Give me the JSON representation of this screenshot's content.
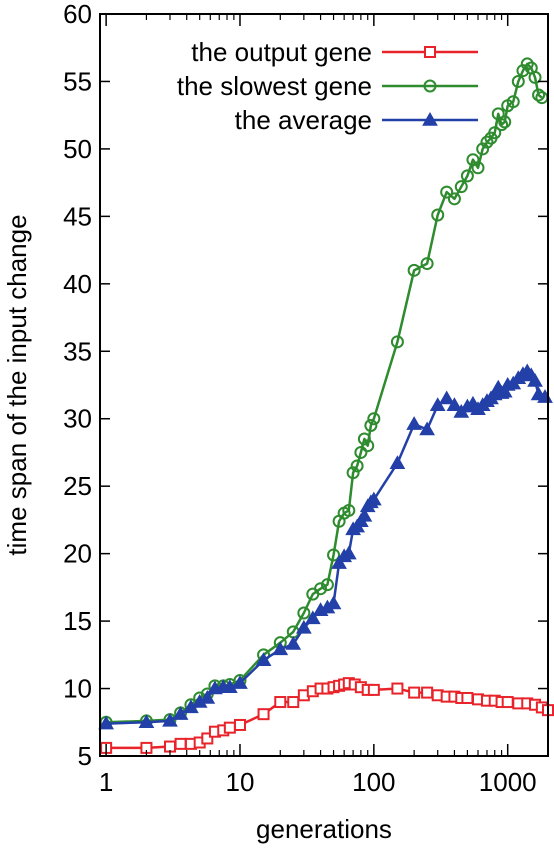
{
  "chart_data": {
    "type": "line",
    "title": "",
    "xlabel": "generations",
    "ylabel": "time span of the input change",
    "xscale": "log",
    "xlim": [
      0.9,
      2000
    ],
    "ylim": [
      5,
      60
    ],
    "grid": false,
    "legend_position": "top-left",
    "x_ticks": [
      {
        "value": 1,
        "label": "1"
      },
      {
        "value": 10,
        "label": "10"
      },
      {
        "value": 100,
        "label": "100"
      },
      {
        "value": 1000,
        "label": "1000"
      }
    ],
    "y_ticks": [
      {
        "value": 5,
        "label": "5"
      },
      {
        "value": 10,
        "label": "10"
      },
      {
        "value": 15,
        "label": "15"
      },
      {
        "value": 20,
        "label": "20"
      },
      {
        "value": 25,
        "label": "25"
      },
      {
        "value": 30,
        "label": "30"
      },
      {
        "value": 35,
        "label": "35"
      },
      {
        "value": 40,
        "label": "40"
      },
      {
        "value": 45,
        "label": "45"
      },
      {
        "value": 50,
        "label": "50"
      },
      {
        "value": 55,
        "label": "55"
      },
      {
        "value": 60,
        "label": "60"
      }
    ],
    "series": [
      {
        "name": "the output gene",
        "color": "#e8232a",
        "marker": "square",
        "points": [
          [
            1,
            5.6
          ],
          [
            2,
            5.6
          ],
          [
            3,
            5.7
          ],
          [
            3.6,
            5.9
          ],
          [
            4.3,
            5.9
          ],
          [
            5,
            6.0
          ],
          [
            5.7,
            6.3
          ],
          [
            6.5,
            6.8
          ],
          [
            7.5,
            6.9
          ],
          [
            8.4,
            7.1
          ],
          [
            10,
            7.3
          ],
          [
            15,
            8.1
          ],
          [
            20,
            9.0
          ],
          [
            25,
            9.0
          ],
          [
            30,
            9.5
          ],
          [
            35,
            9.8
          ],
          [
            40,
            10.0
          ],
          [
            45,
            10.0
          ],
          [
            50,
            10.1
          ],
          [
            55,
            10.2
          ],
          [
            60,
            10.3
          ],
          [
            65,
            10.4
          ],
          [
            72,
            10.3
          ],
          [
            80,
            10.1
          ],
          [
            90,
            9.9
          ],
          [
            100,
            9.9
          ],
          [
            150,
            10.0
          ],
          [
            200,
            9.7
          ],
          [
            250,
            9.7
          ],
          [
            300,
            9.5
          ],
          [
            350,
            9.4
          ],
          [
            400,
            9.4
          ],
          [
            450,
            9.3
          ],
          [
            500,
            9.3
          ],
          [
            600,
            9.2
          ],
          [
            700,
            9.1
          ],
          [
            800,
            9.1
          ],
          [
            900,
            9.0
          ],
          [
            1000,
            9.0
          ],
          [
            1200,
            8.9
          ],
          [
            1400,
            8.9
          ],
          [
            1600,
            8.8
          ],
          [
            1800,
            8.6
          ],
          [
            2000,
            8.4
          ]
        ]
      },
      {
        "name": "the slowest gene",
        "color": "#2e8b2e",
        "marker": "circle",
        "points": [
          [
            1,
            7.5
          ],
          [
            2,
            7.6
          ],
          [
            3,
            7.7
          ],
          [
            3.6,
            8.2
          ],
          [
            4.3,
            8.8
          ],
          [
            5,
            9.3
          ],
          [
            5.7,
            9.6
          ],
          [
            6.5,
            10.2
          ],
          [
            7.5,
            10.2
          ],
          [
            8.4,
            10.3
          ],
          [
            10,
            10.6
          ],
          [
            15,
            12.5
          ],
          [
            20,
            13.4
          ],
          [
            25,
            14.2
          ],
          [
            30,
            15.6
          ],
          [
            35,
            17.0
          ],
          [
            40,
            17.4
          ],
          [
            45,
            17.7
          ],
          [
            50,
            19.9
          ],
          [
            55,
            22.4
          ],
          [
            60,
            23.0
          ],
          [
            65,
            23.2
          ],
          [
            70,
            26.0
          ],
          [
            75,
            26.5
          ],
          [
            80,
            27.5
          ],
          [
            85,
            28.5
          ],
          [
            90,
            28.0
          ],
          [
            95,
            29.5
          ],
          [
            100,
            30.0
          ],
          [
            150,
            35.7
          ],
          [
            200,
            41.0
          ],
          [
            250,
            41.5
          ],
          [
            300,
            45.1
          ],
          [
            350,
            46.8
          ],
          [
            400,
            46.3
          ],
          [
            450,
            47.2
          ],
          [
            500,
            48.0
          ],
          [
            550,
            49.2
          ],
          [
            600,
            48.6
          ],
          [
            650,
            50.0
          ],
          [
            700,
            50.5
          ],
          [
            750,
            50.8
          ],
          [
            800,
            51.2
          ],
          [
            850,
            52.6
          ],
          [
            900,
            51.8
          ],
          [
            950,
            52.0
          ],
          [
            1000,
            53.2
          ],
          [
            1100,
            53.5
          ],
          [
            1200,
            55.0
          ],
          [
            1300,
            55.8
          ],
          [
            1400,
            56.3
          ],
          [
            1500,
            56.0
          ],
          [
            1600,
            55.3
          ],
          [
            1700,
            54.0
          ],
          [
            1800,
            53.8
          ]
        ]
      },
      {
        "name": "the average",
        "color": "#2340a8",
        "marker": "triangle",
        "points": [
          [
            1,
            7.4
          ],
          [
            2,
            7.5
          ],
          [
            3,
            7.6
          ],
          [
            3.6,
            8.1
          ],
          [
            4.3,
            8.6
          ],
          [
            5,
            9.0
          ],
          [
            5.7,
            9.3
          ],
          [
            6.5,
            10.0
          ],
          [
            7.5,
            10.1
          ],
          [
            8.4,
            10.1
          ],
          [
            10,
            10.4
          ],
          [
            15,
            12.1
          ],
          [
            20,
            12.9
          ],
          [
            25,
            13.3
          ],
          [
            30,
            14.5
          ],
          [
            35,
            15.2
          ],
          [
            40,
            15.8
          ],
          [
            45,
            16.0
          ],
          [
            50,
            16.3
          ],
          [
            55,
            19.3
          ],
          [
            60,
            19.8
          ],
          [
            65,
            20.0
          ],
          [
            70,
            21.8
          ],
          [
            75,
            22.0
          ],
          [
            80,
            22.4
          ],
          [
            85,
            22.8
          ],
          [
            90,
            23.5
          ],
          [
            95,
            23.8
          ],
          [
            100,
            24.0
          ],
          [
            150,
            26.7
          ],
          [
            200,
            29.6
          ],
          [
            250,
            29.2
          ],
          [
            300,
            31.0
          ],
          [
            350,
            31.5
          ],
          [
            400,
            31.0
          ],
          [
            450,
            30.5
          ],
          [
            500,
            30.9
          ],
          [
            550,
            31.1
          ],
          [
            600,
            30.7
          ],
          [
            650,
            31.0
          ],
          [
            700,
            31.3
          ],
          [
            750,
            31.5
          ],
          [
            800,
            31.8
          ],
          [
            850,
            32.3
          ],
          [
            900,
            31.9
          ],
          [
            950,
            32.0
          ],
          [
            1000,
            32.5
          ],
          [
            1100,
            32.6
          ],
          [
            1200,
            33.0
          ],
          [
            1300,
            33.3
          ],
          [
            1400,
            33.5
          ],
          [
            1500,
            33.2
          ],
          [
            1600,
            32.8
          ],
          [
            1700,
            31.8
          ],
          [
            1900,
            31.6
          ]
        ]
      }
    ]
  }
}
